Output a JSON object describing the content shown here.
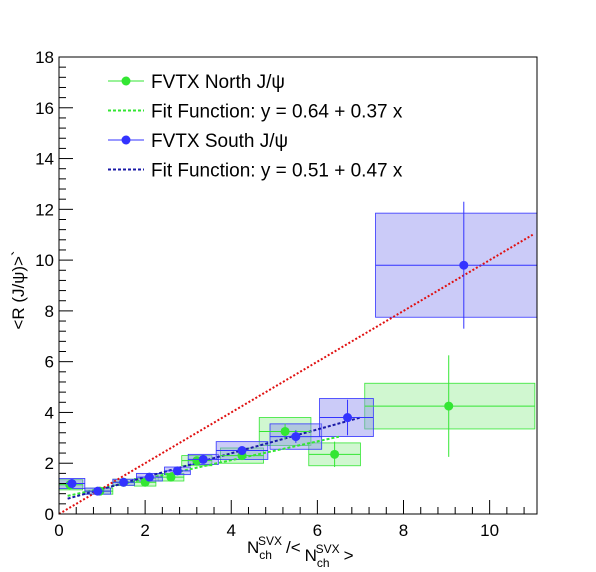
{
  "chart_data": {
    "type": "scatter",
    "xlabel": {
      "base": "N",
      "sub": "ch",
      "sup": "SVX",
      "sep": "/<",
      "base2": "N",
      "sub2": "ch",
      "sup2": "SVX",
      "end": ">"
    },
    "ylabel": "<R (J/ψ)>`",
    "xlim": [
      0,
      11.1
    ],
    "ylim": [
      0,
      18
    ],
    "xticks": [
      0,
      2,
      4,
      6,
      8,
      10
    ],
    "yticks": [
      0,
      2,
      4,
      6,
      8,
      10,
      12,
      14,
      16,
      18
    ],
    "legend_position": "top-left",
    "series": [
      {
        "name": "FVTX North J/ψ",
        "color": "#33e633",
        "fill": "rgba(150,238,150,0.45)",
        "points": [
          {
            "x": 0.25,
            "y": 1.15,
            "ex_lo": 0.25,
            "ex_hi": 0.3,
            "ey": 0.05,
            "sys": 0.2
          },
          {
            "x": 0.95,
            "y": 0.9,
            "ex_lo": 0.35,
            "ex_hi": 0.3,
            "ey": 0.05,
            "sys": 0.12
          },
          {
            "x": 1.5,
            "y": 1.25,
            "ex_lo": 0.25,
            "ex_hi": 0.25,
            "ey": 0.05,
            "sys": 0.12
          },
          {
            "x": 2.0,
            "y": 1.25,
            "ex_lo": 0.25,
            "ex_hi": 0.25,
            "ey": 0.06,
            "sys": 0.15
          },
          {
            "x": 2.6,
            "y": 1.45,
            "ex_lo": 0.3,
            "ex_hi": 0.3,
            "ey": 0.08,
            "sys": 0.15
          },
          {
            "x": 3.2,
            "y": 2.1,
            "ex_lo": 0.35,
            "ex_hi": 0.35,
            "ey": 0.1,
            "sys": 0.2
          },
          {
            "x": 4.25,
            "y": 2.3,
            "ex_lo": 0.5,
            "ex_hi": 0.5,
            "ey": 0.15,
            "sys": 0.3
          },
          {
            "x": 5.25,
            "y": 3.25,
            "ex_lo": 0.6,
            "ex_hi": 0.6,
            "ey": 0.3,
            "sys": 0.55
          },
          {
            "x": 6.4,
            "y": 2.35,
            "ex_lo": 0.6,
            "ex_hi": 0.6,
            "ey": 0.5,
            "sys": 0.45
          },
          {
            "x": 9.05,
            "y": 4.25,
            "ex_lo": 1.95,
            "ex_hi": 2.0,
            "ey": 2.0,
            "sys": 0.9
          }
        ],
        "fit": {
          "label": "Fit Function: y = 0.64 + 0.37 x",
          "a": 0.64,
          "b": 0.37,
          "x0": 0.2,
          "x1": 6.5,
          "color": "#33e633"
        }
      },
      {
        "name": "FVTX South J/ψ",
        "color": "#3333ff",
        "fill": "rgba(140,140,240,0.45)",
        "points": [
          {
            "x": 0.3,
            "y": 1.2,
            "ex_lo": 0.3,
            "ex_hi": 0.3,
            "ey": 0.05,
            "sys": 0.2
          },
          {
            "x": 0.9,
            "y": 0.9,
            "ex_lo": 0.3,
            "ex_hi": 0.3,
            "ey": 0.05,
            "sys": 0.12
          },
          {
            "x": 1.5,
            "y": 1.25,
            "ex_lo": 0.25,
            "ex_hi": 0.25,
            "ey": 0.05,
            "sys": 0.12
          },
          {
            "x": 2.1,
            "y": 1.45,
            "ex_lo": 0.3,
            "ex_hi": 0.3,
            "ey": 0.06,
            "sys": 0.15
          },
          {
            "x": 2.75,
            "y": 1.7,
            "ex_lo": 0.3,
            "ex_hi": 0.3,
            "ey": 0.08,
            "sys": 0.15
          },
          {
            "x": 3.35,
            "y": 2.15,
            "ex_lo": 0.35,
            "ex_hi": 0.35,
            "ey": 0.1,
            "sys": 0.2
          },
          {
            "x": 4.25,
            "y": 2.5,
            "ex_lo": 0.6,
            "ex_hi": 0.6,
            "ey": 0.15,
            "sys": 0.35
          },
          {
            "x": 5.5,
            "y": 3.05,
            "ex_lo": 0.6,
            "ex_hi": 0.6,
            "ey": 0.25,
            "sys": 0.5
          },
          {
            "x": 6.7,
            "y": 3.8,
            "ex_lo": 0.65,
            "ex_hi": 0.6,
            "ey": 0.7,
            "sys": 0.75
          },
          {
            "x": 9.4,
            "y": 9.8,
            "ex_lo": 2.05,
            "ex_hi": 1.75,
            "ey": 2.5,
            "sys": 2.05
          }
        ],
        "fit": {
          "label": "Fit Function: y = 0.51 + 0.47 x",
          "a": 0.51,
          "b": 0.47,
          "x0": 0.2,
          "x1": 7.0,
          "color": "#1a1aa6"
        }
      }
    ],
    "reference_line": {
      "a": 0.0,
      "b": 1.0,
      "x0": 0.0,
      "x1": 11.0,
      "color": "#e01010",
      "style": "dotted"
    }
  }
}
